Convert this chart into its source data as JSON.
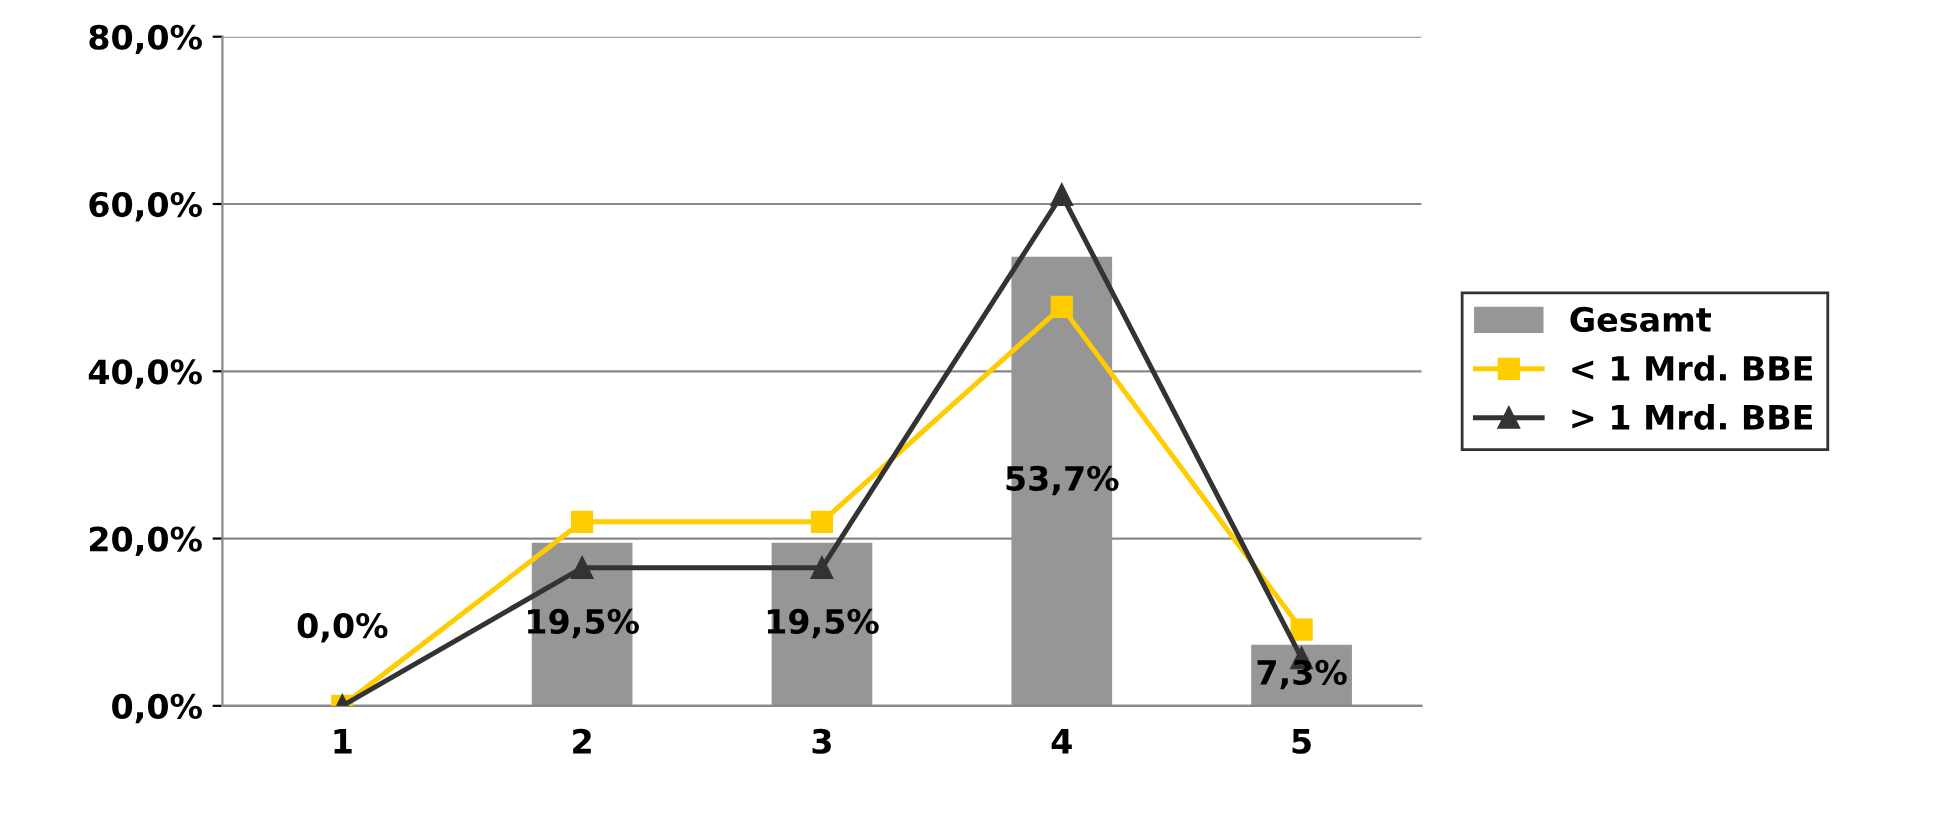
{
  "chart_data": {
    "type": "bar",
    "categories": [
      "1",
      "2",
      "3",
      "4",
      "5"
    ],
    "series": [
      {
        "name": "Gesamt",
        "color": "#969696",
        "values": [
          0.0,
          19.5,
          19.5,
          53.7,
          7.3
        ],
        "value_labels": [
          "0,0%",
          "19,5%",
          "19,5%",
          "53,7%",
          "7,3%"
        ]
      },
      {
        "name": "< 1 Mrd. BBE",
        "type": "line",
        "color": "#ffcc00",
        "marker": "square",
        "values": [
          0.0,
          22.0,
          22.0,
          47.7,
          9.1
        ]
      },
      {
        "name": "> 1 Mrd. BBE",
        "type": "line",
        "color": "#333333",
        "marker": "triangle",
        "values": [
          0.0,
          16.5,
          16.5,
          61.1,
          5.7
        ]
      }
    ],
    "ylim": [
      0,
      80
    ],
    "yticks": [
      {
        "value": 0,
        "label": "0,0%"
      },
      {
        "value": 20,
        "label": "20,0%"
      },
      {
        "value": 40,
        "label": "40,0%"
      },
      {
        "value": 60,
        "label": "60,0%"
      },
      {
        "value": 80,
        "label": "80,0%"
      }
    ],
    "grid": "y",
    "legend": "right"
  }
}
